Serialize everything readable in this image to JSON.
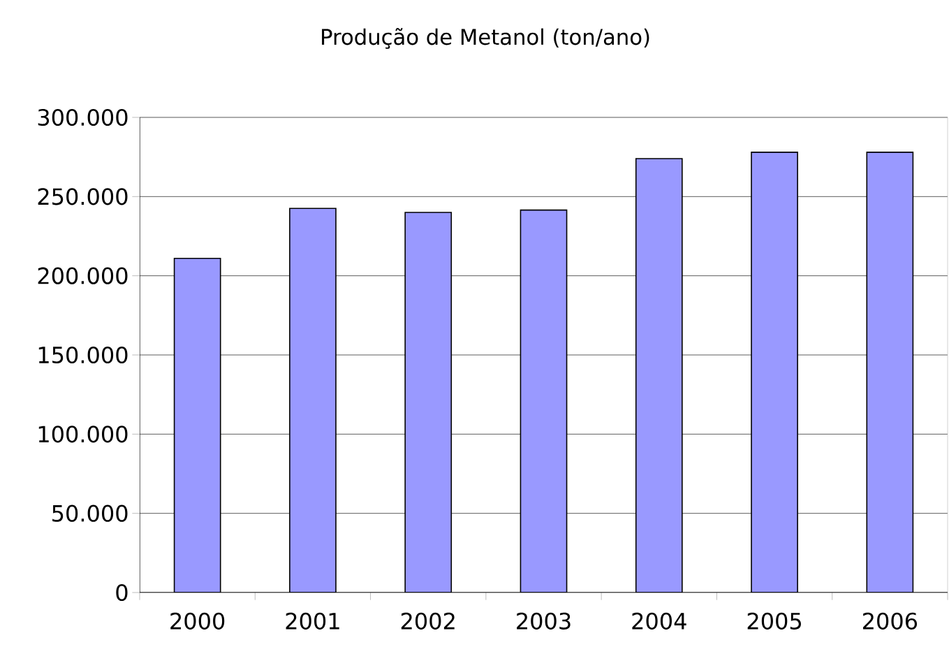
{
  "chart_data": {
    "type": "bar",
    "title": "Produção de Metanol (ton/ano)",
    "categories": [
      "2000",
      "2001",
      "2002",
      "2003",
      "2004",
      "2005",
      "2006"
    ],
    "values": [
      211000,
      242500,
      240000,
      241500,
      274000,
      278000,
      278000
    ],
    "color": "#9999ff",
    "ylim": [
      0,
      300000
    ],
    "yticks": [
      0,
      {
        "value": 50000,
        "label": "50.000"
      },
      {
        "value": 100000,
        "label": "100.000"
      },
      {
        "value": 150000,
        "label": "150.000"
      },
      {
        "value": 200000,
        "label": "200.000"
      },
      {
        "value": 250000,
        "label": "250.000"
      },
      {
        "value": 300000,
        "label": "300.000"
      }
    ],
    "grid": "y"
  }
}
